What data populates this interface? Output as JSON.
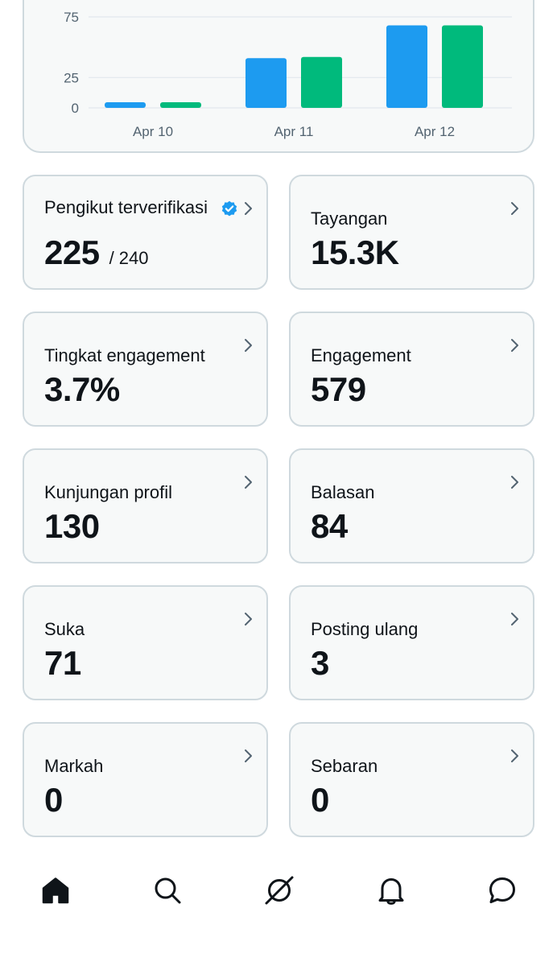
{
  "chart_data": {
    "type": "bar",
    "categories": [
      "Apr 10",
      "Apr 11",
      "Apr 12"
    ],
    "series": [
      {
        "values": [
          4,
          41,
          68
        ],
        "color": "#1d9bf0"
      },
      {
        "values": [
          4,
          42,
          68
        ],
        "color": "#00ba7c"
      }
    ],
    "yticks": [
      "0",
      "25",
      "75"
    ],
    "ylim": [
      0,
      75
    ],
    "grid": true
  },
  "metrics": [
    {
      "label": "Pengikut terverifikasi",
      "value": "225",
      "sub": "/ 240",
      "verified": true
    },
    {
      "label": "Tayangan",
      "value": "15.3K"
    },
    {
      "label": "Tingkat engagement",
      "value": "3.7%"
    },
    {
      "label": "Engagement",
      "value": "579"
    },
    {
      "label": "Kunjungan profil",
      "value": "130"
    },
    {
      "label": "Balasan",
      "value": "84"
    },
    {
      "label": "Suka",
      "value": "71"
    },
    {
      "label": "Posting ulang",
      "value": "3"
    },
    {
      "label": "Markah",
      "value": "0"
    },
    {
      "label": "Sebaran",
      "value": "0"
    }
  ],
  "nav": {
    "items": [
      {
        "icon": "home-icon",
        "active": true
      },
      {
        "icon": "search-icon"
      },
      {
        "icon": "grok-icon"
      },
      {
        "icon": "bell-icon"
      },
      {
        "icon": "messages-icon"
      }
    ]
  },
  "colors": {
    "blue": "#1d9bf0",
    "green": "#00ba7c",
    "card_border": "#cfd9de",
    "card_bg": "#f7f9f9",
    "text": "#0f1419",
    "muted": "#536471"
  }
}
